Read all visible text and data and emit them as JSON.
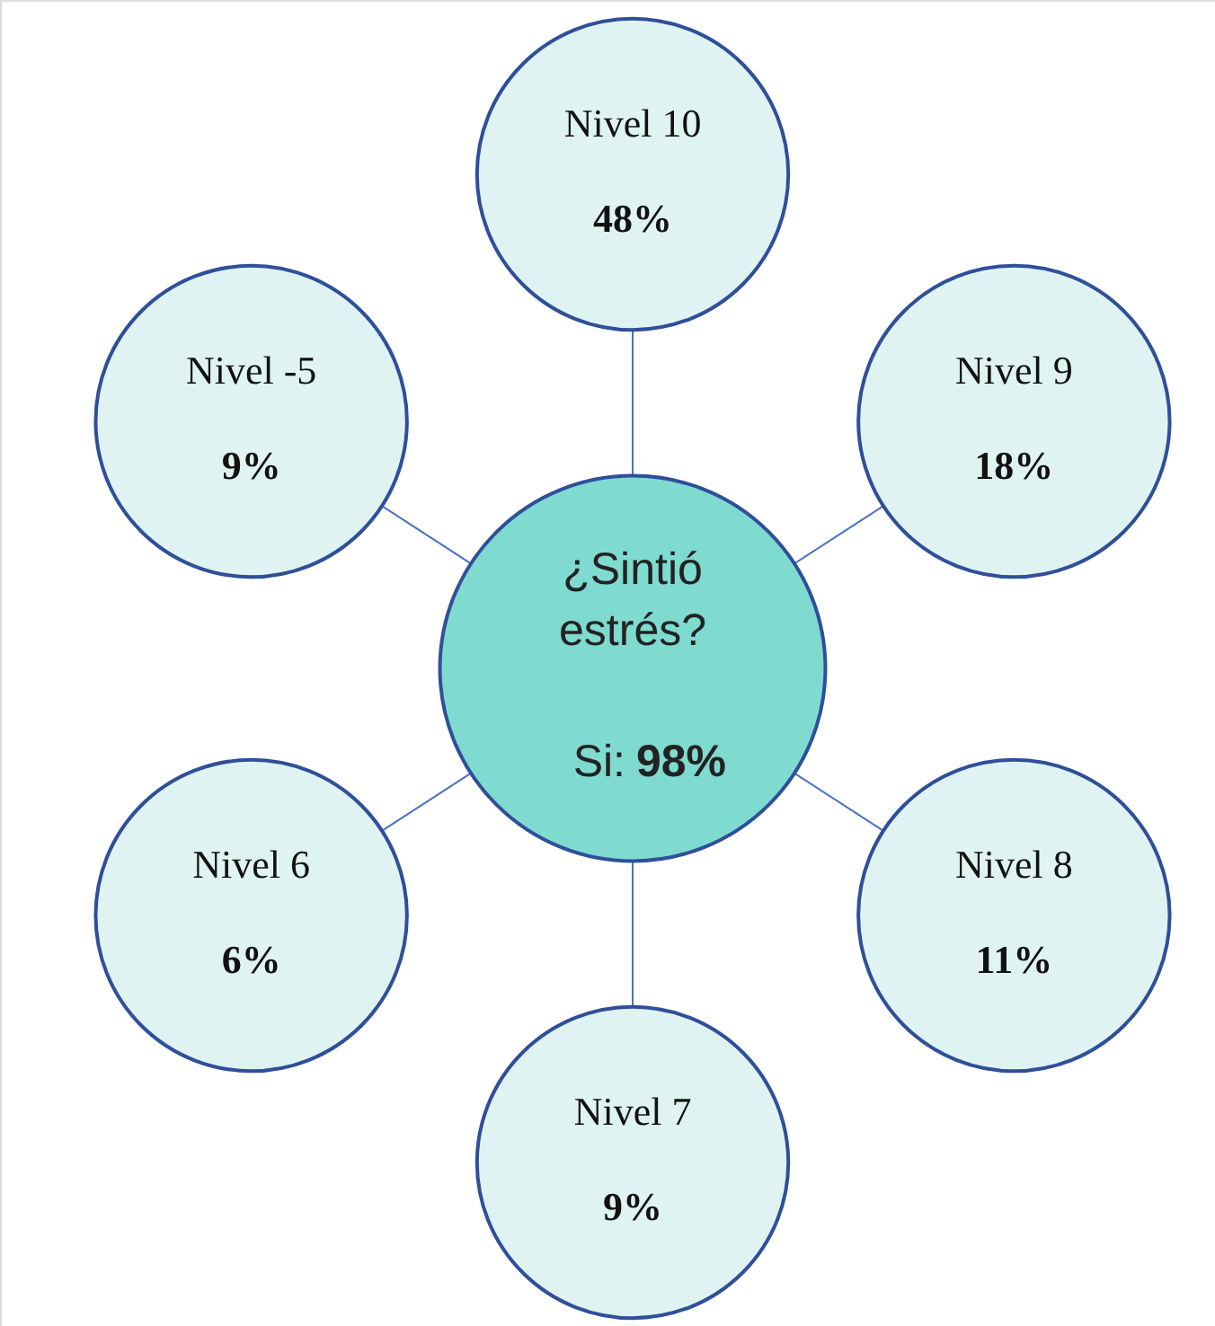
{
  "chart_data": {
    "type": "other",
    "title": "¿Sintió estrés?",
    "annotations": [
      "Si: 98%"
    ],
    "categories": [
      "Nivel 10",
      "Nivel 9",
      "Nivel 8",
      "Nivel 7",
      "Nivel 6",
      "Nivel -5"
    ],
    "values": [
      48,
      18,
      11,
      9,
      6,
      9
    ],
    "value_labels": [
      "48%",
      "18%",
      "11%",
      "9%",
      "6%",
      "9%"
    ],
    "colors": [
      "#dff4f2",
      "#dff4f2",
      "#dff4f2",
      "#dff4f2",
      "#dff4f2",
      "#dff4f2"
    ]
  }
}
